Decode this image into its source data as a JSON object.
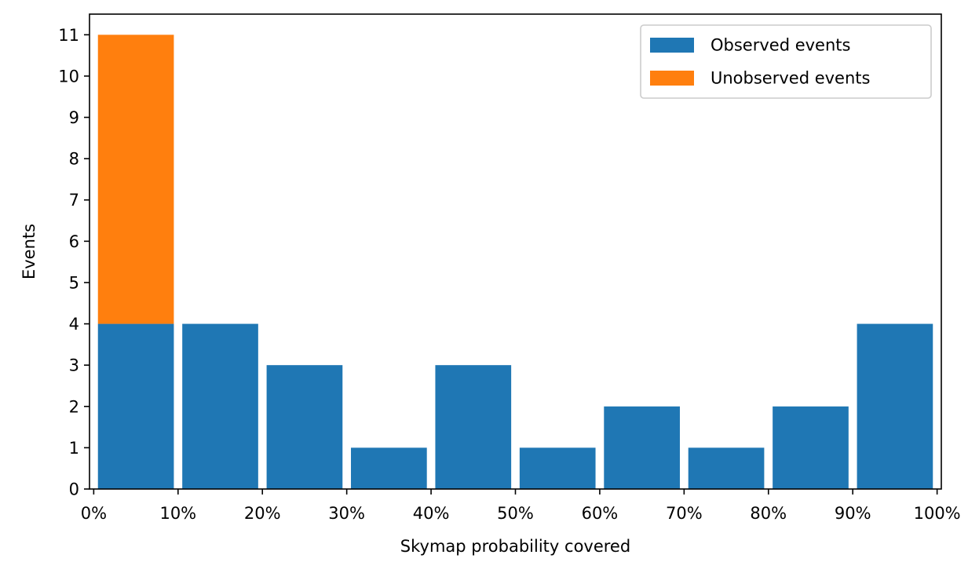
{
  "chart_data": {
    "type": "bar",
    "stacked": true,
    "xlabel": "Skymap probability covered",
    "ylabel": "Events",
    "x_ticks": [
      "0%",
      "10%",
      "20%",
      "30%",
      "40%",
      "50%",
      "60%",
      "70%",
      "80%",
      "90%",
      "100%"
    ],
    "y_ticks": [
      "0",
      "1",
      "2",
      "3",
      "4",
      "5",
      "6",
      "7",
      "8",
      "9",
      "10",
      "11"
    ],
    "bins": [
      [
        0,
        10
      ],
      [
        10,
        20
      ],
      [
        20,
        30
      ],
      [
        30,
        40
      ],
      [
        40,
        50
      ],
      [
        50,
        60
      ],
      [
        60,
        70
      ],
      [
        70,
        80
      ],
      [
        80,
        90
      ],
      [
        90,
        100
      ]
    ],
    "bar_width_fraction": 0.9,
    "xlim": [
      -0.5,
      100.5
    ],
    "ylim": [
      0,
      11.5
    ],
    "series": [
      {
        "name": "Observed events",
        "color": "#1f77b4",
        "values": [
          4,
          4,
          3,
          1,
          3,
          1,
          2,
          1,
          2,
          4
        ]
      },
      {
        "name": "Unobserved events",
        "color": "#ff7f0e",
        "values": [
          7,
          0,
          0,
          0,
          0,
          0,
          0,
          0,
          0,
          0
        ]
      }
    ],
    "legend": {
      "position": "top-right"
    },
    "grid": false
  }
}
